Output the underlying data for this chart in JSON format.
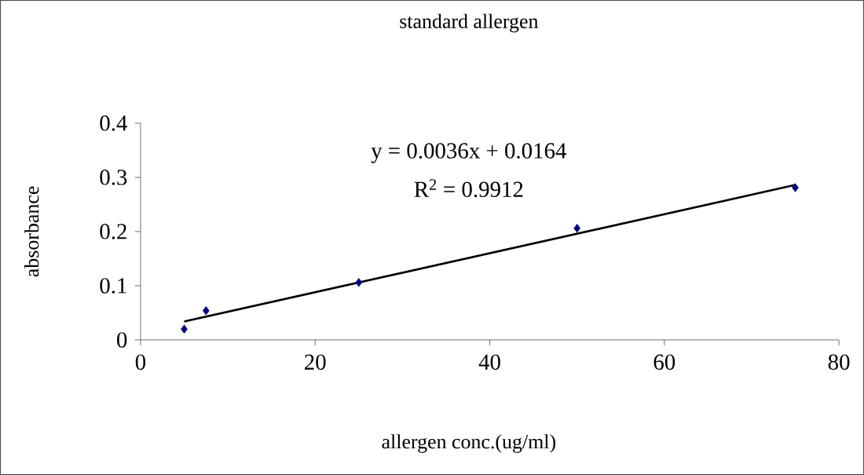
{
  "chart_data": {
    "type": "scatter",
    "title": "standard allergen",
    "xlabel": "allergen conc.(ug/ml)",
    "ylabel": "absorbance",
    "annotations": [
      "y = 0.0036x + 0.0164",
      "R$^{2}$ = 0.9912"
    ],
    "xlim": [
      0,
      80
    ],
    "ylim": [
      0,
      0.4
    ],
    "xticks": [
      0,
      20,
      40,
      60,
      80
    ],
    "yticks": [
      0,
      0.1,
      0.2,
      0.3,
      0.4
    ],
    "series": [
      {
        "color": "#000080",
        "marker": "diamond",
        "x": [
          5,
          7.5,
          25,
          50,
          75
        ],
        "values": [
          0.02,
          0.054,
          0.106,
          0.206,
          0.281
        ]
      },
      {
        "type": "line",
        "color": "#000000",
        "marker": "none",
        "line_style": "solid",
        "x": [
          5,
          75
        ],
        "values": [
          0.034,
          0.286
        ]
      }
    ]
  }
}
